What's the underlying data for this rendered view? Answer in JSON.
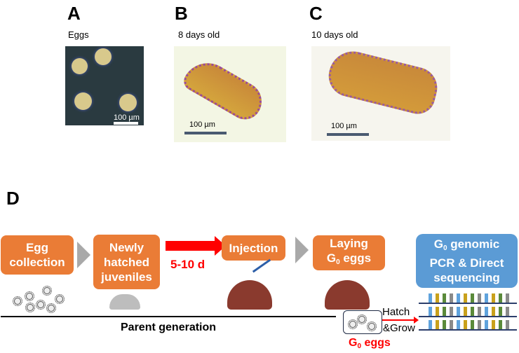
{
  "panels": {
    "A": {
      "letter": "A",
      "caption": "Eggs",
      "scale": "100 µm"
    },
    "B": {
      "letter": "B",
      "caption": "8 days old",
      "scale": "100 µm"
    },
    "C": {
      "letter": "C",
      "caption": "10 days old",
      "scale": "100 µm"
    },
    "D": {
      "letter": "D"
    }
  },
  "workflow": {
    "steps": [
      {
        "label_line1": "Egg",
        "label_line2": "collection"
      },
      {
        "label_line1": "Newly",
        "label_line2": "hatched",
        "label_line3": "juveniles"
      },
      {
        "label": "Injection"
      },
      {
        "label_line1": "Laying",
        "label_line2_pre": "G",
        "label_line2_sub": "0",
        "label_line2_post": " eggs"
      },
      {
        "label_line1_pre": "G",
        "label_line1_sub": "0",
        "label_line1_post": " genomic",
        "label_line2": "PCR & Direct",
        "label_line3": "sequencing"
      }
    ],
    "interval": "5-10 d",
    "hatch_label": "Hatch",
    "grow_label": "&Grow",
    "generation_label": "Parent generation",
    "g0_eggs": {
      "pre": "G",
      "sub": "0",
      "post": " eggs"
    },
    "colors": {
      "orange_box": "#ea7c36",
      "blue_box": "#5b9bd5",
      "red_arrow": "#ff0000",
      "chevron": "#a9a9a9",
      "seq_blue": "#5fa3dd",
      "seq_gold": "#c9a11c",
      "seq_green": "#5a8a3a",
      "seq_gray": "#8a8a8a"
    }
  }
}
